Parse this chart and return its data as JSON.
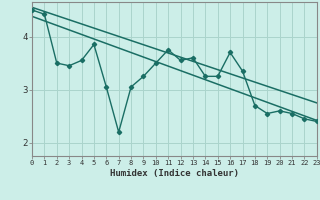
{
  "xlabel": "Humidex (Indice chaleur)",
  "bg_color": "#cceee8",
  "line_color": "#1a6e64",
  "grid_color": "#aad4cc",
  "x_min": 0,
  "x_max": 23,
  "y_min": 1.75,
  "y_max": 4.65,
  "yticks": [
    2,
    3,
    4
  ],
  "xticks": [
    0,
    1,
    2,
    3,
    4,
    5,
    6,
    7,
    8,
    9,
    10,
    11,
    12,
    13,
    14,
    15,
    16,
    17,
    18,
    19,
    20,
    21,
    22,
    23
  ],
  "data_x": [
    0,
    1,
    2,
    3,
    4,
    5,
    6,
    7,
    8,
    9,
    10,
    11,
    12,
    13,
    14,
    15,
    16,
    17,
    18,
    19,
    20,
    21,
    22,
    23
  ],
  "data_y": [
    4.5,
    4.42,
    3.5,
    3.45,
    3.55,
    3.85,
    3.05,
    2.2,
    3.05,
    3.25,
    3.5,
    3.75,
    3.55,
    3.6,
    3.25,
    3.25,
    3.7,
    3.35,
    2.7,
    2.55,
    2.6,
    2.55,
    2.45,
    2.4
  ],
  "upper_line_x": [
    0,
    23
  ],
  "upper_line_y": [
    4.55,
    2.75
  ],
  "lower_line_x": [
    0,
    23
  ],
  "lower_line_y": [
    4.38,
    2.42
  ]
}
